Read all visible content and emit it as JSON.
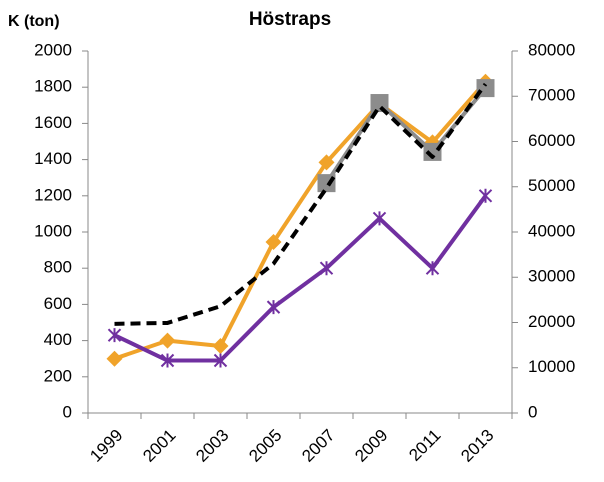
{
  "chart_data": {
    "type": "line",
    "title": "Höstraps",
    "ylabel": "K (ton)",
    "categories": [
      "1999",
      "2001",
      "2003",
      "2005",
      "2007",
      "2009",
      "2011",
      "2013"
    ],
    "ylim": [
      0,
      2000
    ],
    "yticks": [
      0,
      200,
      400,
      600,
      800,
      1000,
      1200,
      1400,
      1600,
      1800,
      2000
    ],
    "y2lim": [
      0,
      80000
    ],
    "y2ticks": [
      0,
      10000,
      20000,
      30000,
      40000,
      50000,
      60000,
      70000,
      80000
    ],
    "grid": false,
    "series": [
      {
        "color": "#f0a32a",
        "marker": "diamond",
        "values": [
          300,
          400,
          370,
          945,
          1385,
          1710,
          1495,
          1830
        ]
      },
      {
        "color": "#7030a0",
        "marker": "star",
        "values": [
          430,
          290,
          290,
          585,
          800,
          1075,
          800,
          1200
        ]
      },
      {
        "color": "#8c8c8c",
        "marker": "square",
        "axis": "y2",
        "values": [
          null,
          null,
          null,
          null,
          50800,
          68500,
          57700,
          71800
        ]
      },
      {
        "color": "#000000",
        "marker": "none",
        "dashed": true,
        "axis": "y2",
        "values": [
          19700,
          19900,
          23600,
          33000,
          49700,
          67800,
          56600,
          72700
        ]
      }
    ]
  }
}
